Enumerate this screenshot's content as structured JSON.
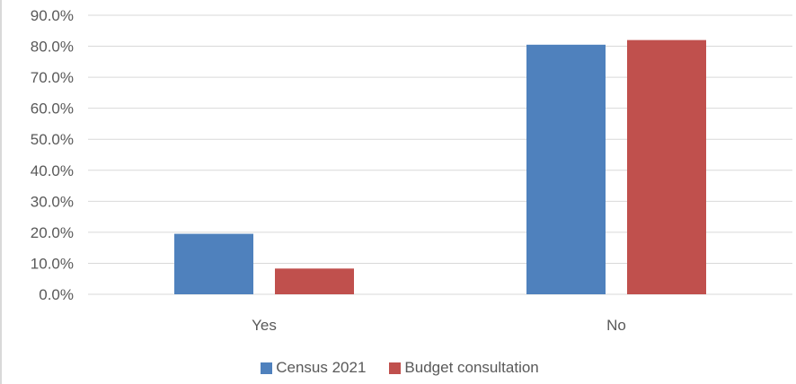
{
  "chart_data": {
    "type": "bar",
    "categories": [
      "Yes",
      "No"
    ],
    "series": [
      {
        "name": "Census 2021",
        "values": [
          19.5,
          80.5
        ],
        "color": "#4f81bd"
      },
      {
        "name": "Budget consultation",
        "values": [
          8.3,
          82.0
        ],
        "color": "#c0504d"
      }
    ],
    "y_ticks": [
      "0.0%",
      "10.0%",
      "20.0%",
      "30.0%",
      "40.0%",
      "50.0%",
      "60.0%",
      "70.0%",
      "80.0%",
      "90.0%"
    ],
    "ylim": [
      0,
      90
    ],
    "y_format": "percent",
    "grid": true,
    "gridline_color": "#d9d9d9",
    "legend": "bottom",
    "title": "",
    "xlabel": "",
    "ylabel": ""
  }
}
